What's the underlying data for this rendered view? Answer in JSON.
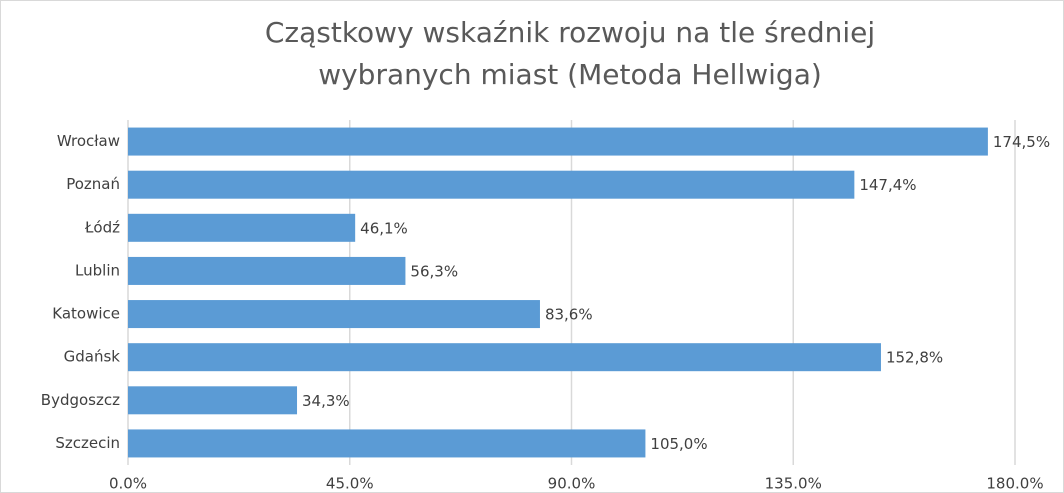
{
  "chart_data": {
    "type": "bar",
    "orientation": "horizontal",
    "title": [
      "Cząstkowy wskaźnik rozwoju na tle średniej",
      "wybranych  miast (Metoda Hellwiga)"
    ],
    "categories": [
      "Wrocław",
      "Poznań",
      "Łódź",
      "Lublin",
      "Katowice",
      "Gdańsk",
      "Bydgoszcz",
      "Szczecin"
    ],
    "values": [
      174.5,
      147.4,
      46.1,
      56.3,
      83.6,
      152.8,
      34.3,
      105.0
    ],
    "value_labels": [
      "174,5%",
      "147,4%",
      "46,1%",
      "56,3%",
      "83,6%",
      "152,8%",
      "34,3%",
      "105,0%"
    ],
    "color": "#5b9bd5",
    "xlim": [
      0,
      180
    ],
    "xticks": [
      {
        "value": 0,
        "label": "0.0%"
      },
      {
        "value": 45,
        "label": "45.0%"
      },
      {
        "value": 90,
        "label": "90.0%"
      },
      {
        "value": 135,
        "label": "135.0%"
      },
      {
        "value": 180,
        "label": "180.0%"
      }
    ],
    "grid": true
  }
}
